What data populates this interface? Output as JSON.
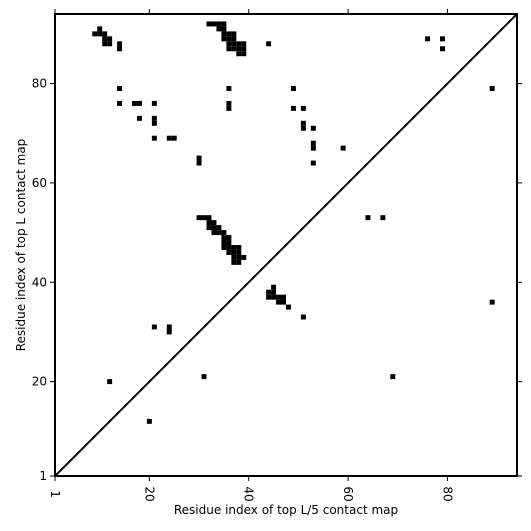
{
  "chart_data": {
    "type": "heatmap",
    "xlabel": "Residue index of top L/5 contact map",
    "ylabel": "Residue index of top L contact map",
    "xlim": [
      1,
      94
    ],
    "ylim": [
      1,
      94
    ],
    "xticks": [
      1,
      20,
      40,
      60,
      80
    ],
    "yticks": [
      1,
      20,
      40,
      60,
      80
    ],
    "diagonal": true,
    "grid": false,
    "cell_color": "#000000",
    "contacts": [
      [
        10,
        91
      ],
      [
        9,
        90
      ],
      [
        10,
        90
      ],
      [
        11,
        90
      ],
      [
        11,
        89
      ],
      [
        12,
        89
      ],
      [
        11,
        88
      ],
      [
        12,
        88
      ],
      [
        14,
        88
      ],
      [
        14,
        87
      ],
      [
        14,
        79
      ],
      [
        14,
        76
      ],
      [
        17,
        76
      ],
      [
        18,
        76
      ],
      [
        21,
        76
      ],
      [
        18,
        73
      ],
      [
        21,
        73
      ],
      [
        21,
        72
      ],
      [
        21,
        69
      ],
      [
        24,
        69
      ],
      [
        25,
        69
      ],
      [
        30,
        65
      ],
      [
        30,
        64
      ],
      [
        32,
        92
      ],
      [
        33,
        92
      ],
      [
        34,
        92
      ],
      [
        35,
        92
      ],
      [
        34,
        91
      ],
      [
        35,
        91
      ],
      [
        35,
        90
      ],
      [
        36,
        90
      ],
      [
        37,
        90
      ],
      [
        35,
        89
      ],
      [
        36,
        89
      ],
      [
        37,
        89
      ],
      [
        36,
        88
      ],
      [
        37,
        88
      ],
      [
        38,
        88
      ],
      [
        39,
        88
      ],
      [
        36,
        87
      ],
      [
        37,
        87
      ],
      [
        38,
        87
      ],
      [
        39,
        87
      ],
      [
        38,
        86
      ],
      [
        39,
        86
      ],
      [
        44,
        88
      ],
      [
        36,
        79
      ],
      [
        36,
        76
      ],
      [
        36,
        75
      ],
      [
        49,
        79
      ],
      [
        49,
        75
      ],
      [
        51,
        75
      ],
      [
        51,
        72
      ],
      [
        51,
        71
      ],
      [
        53,
        71
      ],
      [
        53,
        68
      ],
      [
        53,
        67
      ],
      [
        53,
        64
      ],
      [
        59,
        67
      ],
      [
        76,
        89
      ],
      [
        79,
        89
      ],
      [
        79,
        87
      ],
      [
        89,
        79
      ],
      [
        30,
        53
      ],
      [
        31,
        53
      ],
      [
        32,
        53
      ],
      [
        32,
        52
      ],
      [
        33,
        52
      ],
      [
        32,
        51
      ],
      [
        33,
        51
      ],
      [
        34,
        51
      ],
      [
        33,
        50
      ],
      [
        34,
        50
      ],
      [
        35,
        50
      ],
      [
        35,
        49
      ],
      [
        36,
        49
      ],
      [
        35,
        48
      ],
      [
        36,
        48
      ],
      [
        35,
        47
      ],
      [
        36,
        47
      ],
      [
        37,
        47
      ],
      [
        38,
        47
      ],
      [
        36,
        46
      ],
      [
        37,
        46
      ],
      [
        38,
        46
      ],
      [
        37,
        45
      ],
      [
        38,
        45
      ],
      [
        39,
        45
      ],
      [
        37,
        44
      ],
      [
        38,
        44
      ],
      [
        64,
        53
      ],
      [
        67,
        53
      ],
      [
        45,
        39
      ],
      [
        44,
        38
      ],
      [
        45,
        38
      ],
      [
        44,
        37
      ],
      [
        45,
        37
      ],
      [
        46,
        37
      ],
      [
        47,
        37
      ],
      [
        46,
        36
      ],
      [
        47,
        36
      ],
      [
        48,
        35
      ],
      [
        51,
        33
      ],
      [
        89,
        36
      ],
      [
        21,
        31
      ],
      [
        24,
        31
      ],
      [
        24,
        30
      ],
      [
        12,
        20
      ],
      [
        31,
        21
      ],
      [
        69,
        21
      ],
      [
        20,
        12
      ]
    ]
  }
}
